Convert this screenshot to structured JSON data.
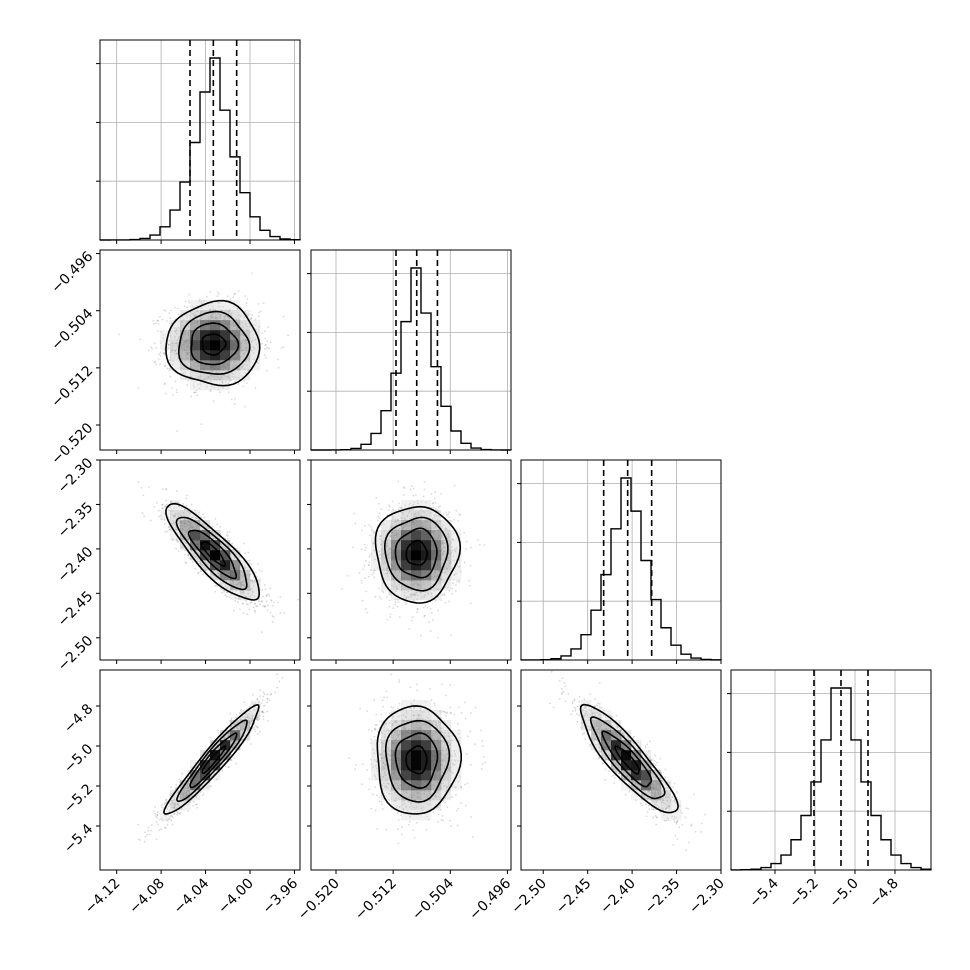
{
  "chart_data": {
    "type": "corner",
    "parameters": [
      {
        "range": [
          -4.135,
          -3.955
        ],
        "ticks": [
          "−4.12",
          "−4.08",
          "−4.04",
          "−4.00",
          "−3.96"
        ],
        "tick_values": [
          -4.12,
          -4.08,
          -4.04,
          -4.0,
          -3.96
        ],
        "mean": -4.033,
        "sd": 0.021,
        "quantiles": [
          -4.054,
          -4.033,
          -4.012
        ]
      },
      {
        "range": [
          -0.5235,
          -0.4955
        ],
        "ticks": [
          "−0.520",
          "−0.512",
          "−0.504",
          "−0.496"
        ],
        "tick_values": [
          -0.52,
          -0.512,
          -0.504,
          -0.496
        ],
        "mean": -0.5087,
        "sd": 0.0029,
        "quantiles": [
          -0.5116,
          -0.5087,
          -0.5058
        ]
      },
      {
        "range": [
          -2.525,
          -2.3
        ],
        "ticks": [
          "−2.50",
          "−2.45",
          "−2.40",
          "−2.35",
          "−2.30"
        ],
        "tick_values": [
          -2.5,
          -2.45,
          -2.4,
          -2.35,
          -2.3
        ],
        "mean": -2.405,
        "sd": 0.027,
        "quantiles": [
          -2.432,
          -2.405,
          -2.378
        ]
      },
      {
        "range": [
          -5.62,
          -4.62
        ],
        "ticks": [
          "−5.4",
          "−5.2",
          "−5.0",
          "−4.8"
        ],
        "tick_values": [
          -5.4,
          -5.2,
          -5.0,
          -4.8
        ],
        "mean": -5.07,
        "sd": 0.135,
        "quantiles": [
          -5.205,
          -5.07,
          -4.935
        ]
      }
    ],
    "row_ticks": [
      {
        "row": 1,
        "ticks": [
          "−0.496",
          "−0.504",
          "−0.512",
          "−0.520"
        ],
        "tick_values": [
          -0.496,
          -0.504,
          -0.512,
          -0.52
        ]
      },
      {
        "row": 2,
        "ticks": [
          "2.30",
          "2.35",
          "2.40",
          "2.45",
          "2.50"
        ],
        "signs": [
          "−",
          "−",
          "−",
          "−",
          "−"
        ],
        "tick_values": [
          -2.3,
          -2.35,
          -2.4,
          -2.45,
          -2.5
        ]
      },
      {
        "row": 3,
        "ticks": [
          "−4.8",
          "−5.0",
          "−5.2",
          "−5.4"
        ],
        "tick_values": [
          -4.8,
          -5.0,
          -5.2,
          -5.4
        ]
      }
    ],
    "correlations": [
      {
        "pair": [
          0,
          1
        ],
        "rho": 0.0
      },
      {
        "pair": [
          0,
          2
        ],
        "rho": -0.85
      },
      {
        "pair": [
          0,
          3
        ],
        "rho": 0.95
      },
      {
        "pair": [
          1,
          2
        ],
        "rho": 0.0
      },
      {
        "pair": [
          1,
          3
        ],
        "rho": 0.0
      },
      {
        "pair": [
          2,
          3
        ],
        "rho": -0.88
      }
    ],
    "histogram_bins": 20,
    "contour_levels_sigma": [
      0.5,
      1.0,
      1.5,
      2.0
    ],
    "grid": true,
    "colors": {
      "points": "#555555",
      "lines": "#000000",
      "grid": "#b0b0b0"
    }
  }
}
